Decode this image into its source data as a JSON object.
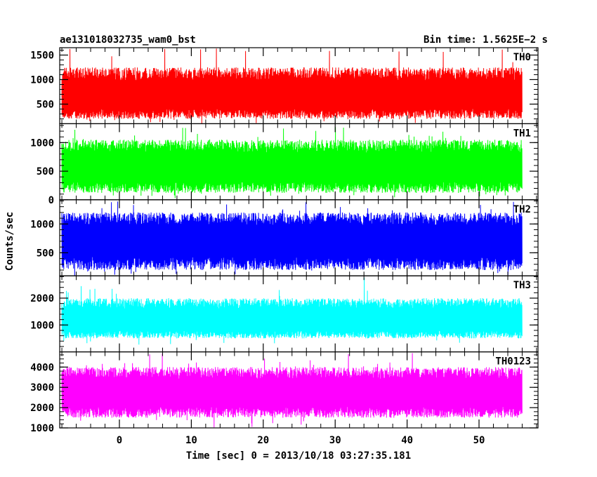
{
  "chart_data": {
    "type": "line",
    "title_left": "ae131018032735_wam0_bst",
    "title_right": "Bin time: 1.5625E−2 s",
    "xlabel": "Time [sec] 0 = 2013/10/18 03:27:35.181",
    "ylabel": "Counts/sec",
    "xlim": [
      -8.3,
      58.2
    ],
    "data_x_range": [
      -8,
      56
    ],
    "x_ticks": [
      0,
      10,
      20,
      30,
      40,
      50
    ],
    "x_tick_labels": [
      "0",
      "10",
      "20",
      "30",
      "40",
      "50"
    ],
    "grid": false,
    "panels": [
      {
        "label": "TH0",
        "color": "#ff0000",
        "ylim": [
          100,
          1650
        ],
        "y_ticks": [
          500,
          1000,
          1500
        ],
        "y_tick_labels": [
          "500",
          "1000",
          "1500"
        ],
        "mean": 650,
        "typical_low": 200,
        "typical_high": 1250,
        "min": 100,
        "max": 1650
      },
      {
        "label": "TH1",
        "color": "#00ff00",
        "ylim": [
          0,
          1330
        ],
        "y_ticks": [
          0,
          500,
          1000
        ],
        "y_tick_labels": [
          "0",
          "500",
          "1000"
        ],
        "mean": 550,
        "typical_low": 120,
        "typical_high": 1050,
        "min": 20,
        "max": 1300
      },
      {
        "label": "TH2",
        "color": "#0000ff",
        "ylim": [
          100,
          1420
        ],
        "y_ticks": [
          500,
          1000
        ],
        "y_tick_labels": [
          "500",
          "1000"
        ],
        "mean": 700,
        "typical_low": 200,
        "typical_high": 1200,
        "min": 100,
        "max": 1400
      },
      {
        "label": "TH3",
        "color": "#00ffff",
        "ylim": [
          0,
          2830
        ],
        "y_ticks": [
          1000,
          2000
        ],
        "y_tick_labels": [
          "1000",
          "2000"
        ],
        "mean": 1150,
        "typical_low": 500,
        "typical_high": 2000,
        "min": 250,
        "max": 2800
      },
      {
        "label": "TH0123",
        "color": "#ff00ff",
        "ylim": [
          1000,
          4750
        ],
        "y_ticks": [
          1000,
          2000,
          3000,
          4000
        ],
        "y_tick_labels": [
          "1000",
          "2000",
          "3000",
          "4000"
        ],
        "mean": 2700,
        "typical_low": 1500,
        "typical_high": 4000,
        "min": 1000,
        "max": 4700
      }
    ]
  }
}
